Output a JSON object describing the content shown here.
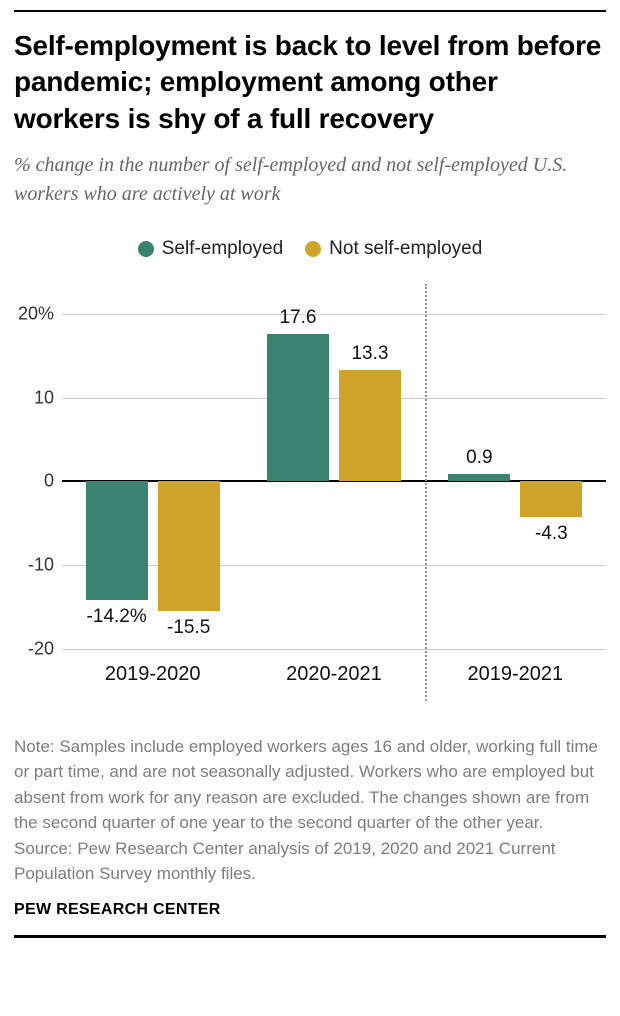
{
  "header": {
    "title": "Self-employment is back to level from before pandemic; employment among other workers is shy of a full recovery",
    "subtitle": "% change in the number of self-employed and not self-employed U.S. workers who are actively at work"
  },
  "chart_data": {
    "type": "bar",
    "categories": [
      "2019-2020",
      "2020-2021",
      "2019-2021"
    ],
    "series": [
      {
        "name": "Self-employed",
        "color": "#3a8370",
        "values": [
          -14.2,
          17.6,
          0.9
        ],
        "value_labels": [
          "-14.2%",
          "17.6",
          "0.9"
        ]
      },
      {
        "name": "Not self-employed",
        "color": "#d0a32a",
        "values": [
          -15.5,
          13.3,
          -4.3
        ],
        "value_labels": [
          "-15.5",
          "13.3",
          "-4.3"
        ]
      }
    ],
    "ylim": [
      -20,
      20
    ],
    "yticks": [
      20,
      10,
      0,
      -10,
      -20
    ],
    "ytick_labels": [
      "20%",
      "10",
      "0",
      "-10",
      "-20"
    ],
    "divider_before_category": 2,
    "legend_position": "top-center",
    "grid": "horizontal"
  },
  "footer": {
    "note": "Note: Samples include employed workers ages 16 and older, working full time or part time, and are not seasonally adjusted. Workers who are employed but absent from work for any reason are excluded. The changes shown are from the second quarter of one year to the second quarter of the other year.",
    "source": "Source: Pew Research Center analysis of 2019, 2020 and 2021 Current Population Survey monthly files.",
    "brand": "PEW RESEARCH CENTER"
  }
}
